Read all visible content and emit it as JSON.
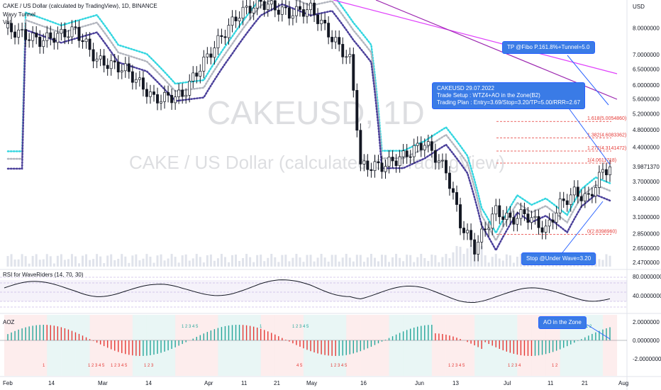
{
  "header": {
    "symbol_line": "CAKE / US Dollar (calculated by TradingView), 1D, BINANCE",
    "indicator1": "Wavy Tunnel",
    "indicator2": "Vol"
  },
  "watermark": {
    "line1": "CAKEUSD, 1D",
    "line2": "CAKE / US Dollar (calculated by TradingView)"
  },
  "currency": "USD",
  "chart_data": {
    "type": "candlestick",
    "symbol": "CAKEUSD",
    "timeframe": "1D",
    "x_tick_labels": [
      "Feb",
      "14",
      "Mar",
      "14",
      "Apr",
      "11",
      "21",
      "May",
      "16",
      "Jun",
      "13",
      "Jul",
      "11",
      "21",
      "Aug"
    ],
    "price_axis": {
      "scale": "log",
      "ticks": [
        "8.0000000",
        "7.0000000",
        "6.5000000",
        "6.0000000",
        "5.6000000",
        "5.2000000",
        "4.8000000",
        "4.4000000",
        "3.9871370",
        "3.7000000",
        "3.4000000",
        "3.1000000",
        "2.8500000",
        "2.6500000",
        "2.4700000"
      ],
      "last_price": "3.9871370",
      "range": [
        2.4,
        9.2
      ]
    },
    "fib_levels": [
      {
        "label": "1.618(5.0054860)",
        "value": 5.005486
      },
      {
        "label": "1.382(4.6083362)",
        "value": 4.6083362
      },
      {
        "label": "1.272(4.3141472)",
        "value": 4.3141472
      },
      {
        "label": "1(4.0611718)",
        "value": 4.0611718
      },
      {
        "label": "0(2.8398960)",
        "value": 2.839896
      }
    ],
    "rsi": {
      "label": "RSI for WaveRiders (14, 70, 30)",
      "ticks": [
        "80.0000000",
        "40.0000000"
      ]
    },
    "ao": {
      "label": "AOZ",
      "ticks": [
        "2.0000000",
        "0.0000000",
        "-2.0000000"
      ],
      "signal_labels_green": [
        "1 2 3 4 5",
        "1",
        "1 2 3 4 5",
        "1 2"
      ],
      "signal_labels_red": [
        "1",
        "1 2 3 4 5",
        "1 2 3 4 5",
        "1 2 3",
        "4 5",
        "1 2 3 4 5",
        "1 2 3 4 5",
        "1 2 3 4",
        "1 2"
      ]
    }
  },
  "annotations": {
    "tp": "TP @Fibo P.161.8%+Tunnel=5.0",
    "plan_l1": "CAKEUSD 29.07.2022",
    "plan_l2": "Trade Setup : WTZ4+AO in the Zone(B2)",
    "plan_l3": "Trading Plan : Entry=3.69/Stop=3.20/TP=5.00/RRR=2.67",
    "stop": "Stop @Under Wave=3.20",
    "ao_zone": "AO in the Zone"
  },
  "colors": {
    "up": "#131722",
    "tunnel_top": "#33d6e0",
    "tunnel_mid": "#b2b5be",
    "tunnel_bot": "#4a3f9a",
    "ma1": "#e040fb",
    "ma2": "#9c27b0",
    "fib": "#e53935",
    "callout": "#3a7be6",
    "ao_up": "#26a69a",
    "ao_down": "#e53935"
  }
}
